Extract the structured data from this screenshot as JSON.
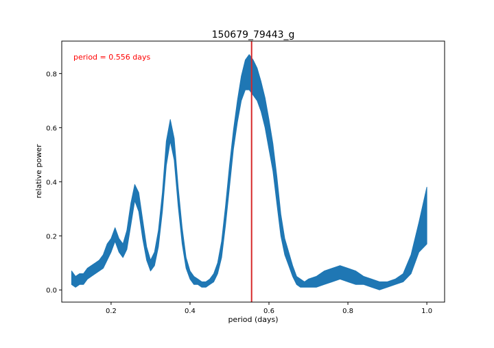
{
  "chart_data": {
    "type": "line",
    "title": "150679_79443_g",
    "xlabel": "period (days)",
    "ylabel": "relative power",
    "xlim": [
      0.075,
      1.045
    ],
    "ylim": [
      -0.045,
      0.92
    ],
    "xticks": [
      0.2,
      0.4,
      0.6,
      0.8,
      1.0
    ],
    "xtick_labels": [
      "0.2",
      "0.4",
      "0.6",
      "0.8",
      "1.0"
    ],
    "yticks": [
      0.0,
      0.2,
      0.4,
      0.6,
      0.8
    ],
    "ytick_labels": [
      "0.0",
      "0.2",
      "0.4",
      "0.6",
      "0.8"
    ],
    "grid": false,
    "annotation": "period = 0.556 days",
    "annotation_color": "#ff0000",
    "vline_x": 0.556,
    "vline_color": "#d62728",
    "series_color": "#1f77b4",
    "series": [
      {
        "x": [
          0.1,
          0.11,
          0.12,
          0.13,
          0.14,
          0.15,
          0.16,
          0.17,
          0.18,
          0.19,
          0.2,
          0.21,
          0.22,
          0.23,
          0.24,
          0.25,
          0.26,
          0.27,
          0.28,
          0.29,
          0.3,
          0.31,
          0.32,
          0.33,
          0.34,
          0.35,
          0.36,
          0.37,
          0.38,
          0.39,
          0.4,
          0.41,
          0.42,
          0.43,
          0.44,
          0.45,
          0.46,
          0.47,
          0.48,
          0.49,
          0.5,
          0.51,
          0.52,
          0.53,
          0.54,
          0.55,
          0.56,
          0.57,
          0.58,
          0.59,
          0.6,
          0.61,
          0.62,
          0.63,
          0.64,
          0.65,
          0.66,
          0.67,
          0.68,
          0.69,
          0.7,
          0.72,
          0.74,
          0.76,
          0.78,
          0.8,
          0.82,
          0.84,
          0.86,
          0.88,
          0.9,
          0.92,
          0.94,
          0.96,
          0.98,
          1.0
        ],
        "lower": [
          0.02,
          0.01,
          0.02,
          0.02,
          0.04,
          0.05,
          0.06,
          0.07,
          0.08,
          0.11,
          0.14,
          0.18,
          0.14,
          0.12,
          0.15,
          0.24,
          0.33,
          0.29,
          0.19,
          0.11,
          0.07,
          0.09,
          0.16,
          0.29,
          0.46,
          0.55,
          0.48,
          0.31,
          0.17,
          0.08,
          0.04,
          0.02,
          0.02,
          0.01,
          0.01,
          0.02,
          0.03,
          0.06,
          0.12,
          0.24,
          0.38,
          0.52,
          0.62,
          0.7,
          0.74,
          0.74,
          0.72,
          0.7,
          0.66,
          0.6,
          0.52,
          0.44,
          0.32,
          0.2,
          0.13,
          0.09,
          0.05,
          0.02,
          0.01,
          0.01,
          0.01,
          0.01,
          0.02,
          0.03,
          0.04,
          0.03,
          0.02,
          0.02,
          0.01,
          0.0,
          0.01,
          0.02,
          0.03,
          0.06,
          0.14,
          0.17
        ],
        "upper": [
          0.07,
          0.05,
          0.06,
          0.06,
          0.08,
          0.09,
          0.1,
          0.11,
          0.13,
          0.17,
          0.19,
          0.23,
          0.19,
          0.17,
          0.22,
          0.32,
          0.39,
          0.36,
          0.26,
          0.16,
          0.11,
          0.14,
          0.22,
          0.36,
          0.55,
          0.63,
          0.56,
          0.38,
          0.23,
          0.12,
          0.07,
          0.05,
          0.04,
          0.03,
          0.03,
          0.04,
          0.06,
          0.1,
          0.18,
          0.31,
          0.46,
          0.59,
          0.7,
          0.79,
          0.85,
          0.87,
          0.85,
          0.82,
          0.77,
          0.71,
          0.63,
          0.54,
          0.42,
          0.28,
          0.19,
          0.14,
          0.09,
          0.05,
          0.04,
          0.03,
          0.04,
          0.05,
          0.07,
          0.08,
          0.09,
          0.08,
          0.07,
          0.05,
          0.04,
          0.03,
          0.03,
          0.04,
          0.06,
          0.13,
          0.25,
          0.38
        ]
      }
    ]
  }
}
